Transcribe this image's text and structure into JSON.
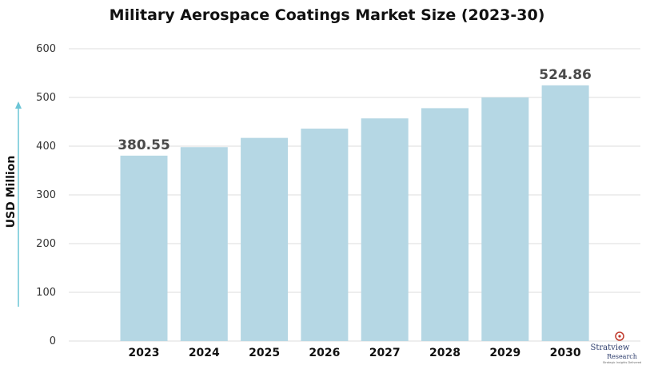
{
  "chart_data": {
    "type": "bar",
    "title": "Military Aerospace Coatings Market Size (2023-30)",
    "ylabel": "USD Million",
    "xlabel": "",
    "categories": [
      "2023",
      "2024",
      "2025",
      "2026",
      "2027",
      "2028",
      "2029",
      "2030"
    ],
    "values": [
      380.55,
      398,
      417,
      436,
      457,
      478,
      500,
      524.86
    ],
    "data_labels": [
      {
        "category": "2023",
        "text": "380.55"
      },
      {
        "category": "2030",
        "text": "524.86"
      }
    ],
    "ylim": [
      0,
      600
    ],
    "yticks": [
      0,
      100,
      200,
      300,
      400,
      500,
      600
    ],
    "grid": true,
    "bar_color": "#b5d7e4",
    "axis_arrow_color": "#6cc5d6"
  },
  "logo": {
    "line1": "Stratview",
    "line2": "Research",
    "tagline": "Strategic Insights Delivered"
  }
}
